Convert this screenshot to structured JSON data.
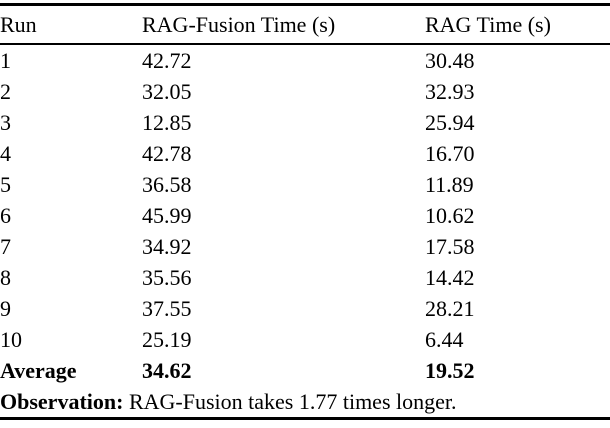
{
  "page": {
    "background_color": "#ffffff",
    "text_color": "#000000",
    "rule_color": "#000000"
  },
  "chart_data": {
    "type": "table",
    "columns": [
      "Run",
      "RAG-Fusion Time (s)",
      "RAG Time (s)"
    ],
    "runs": [
      1,
      2,
      3,
      4,
      5,
      6,
      7,
      8,
      9,
      10
    ],
    "rag_fusion_times": [
      42.72,
      32.05,
      12.85,
      42.78,
      36.58,
      45.99,
      34.92,
      35.56,
      37.55,
      25.19
    ],
    "rag_times": [
      30.48,
      32.93,
      25.94,
      16.7,
      11.89,
      10.62,
      17.58,
      14.42,
      28.21,
      6.44
    ],
    "average": {
      "rag_fusion": 34.62,
      "rag": 19.52
    }
  },
  "table": {
    "headers": [
      "Run",
      "RAG-Fusion Time (s)",
      "RAG Time (s)"
    ],
    "rows": [
      [
        "1",
        "42.72",
        "30.48"
      ],
      [
        "2",
        "32.05",
        "32.93"
      ],
      [
        "3",
        "12.85",
        "25.94"
      ],
      [
        "4",
        "42.78",
        "16.70"
      ],
      [
        "5",
        "36.58",
        "11.89"
      ],
      [
        "6",
        "45.99",
        "10.62"
      ],
      [
        "7",
        "34.92",
        "17.58"
      ],
      [
        "8",
        "35.56",
        "14.42"
      ],
      [
        "9",
        "37.55",
        "28.21"
      ],
      [
        "10",
        "25.19",
        "6.44"
      ]
    ],
    "average_row": {
      "label": "Average",
      "rag_fusion_time": "34.62",
      "rag_time": "19.52"
    },
    "observation": {
      "label": "Observation:",
      "text": "RAG-Fusion takes 1.77 times longer."
    }
  }
}
